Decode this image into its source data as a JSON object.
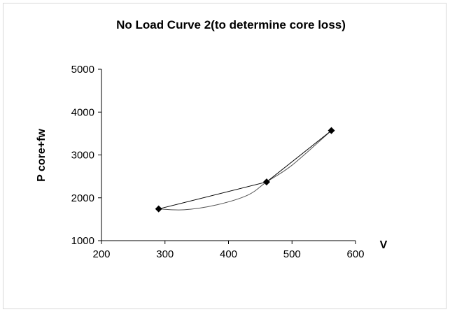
{
  "chart_data": {
    "type": "scatter",
    "title": "No Load Curve 2(to determine core loss)",
    "xlabel": "V",
    "ylabel": "P core+fw",
    "xlim": [
      200,
      600
    ],
    "ylim": [
      1000,
      5000
    ],
    "xticks": [
      200,
      300,
      400,
      500,
      600
    ],
    "yticks": [
      1000,
      2000,
      3000,
      4000,
      5000
    ],
    "grid": false,
    "legend": "none",
    "series": [
      {
        "style": "line-with-markers",
        "marker": "diamond",
        "color": "#000000",
        "x": [
          290,
          460,
          562
        ],
        "y": [
          1740,
          2370,
          3570
        ]
      },
      {
        "style": "smooth-trendline",
        "color": "#555555",
        "x": [
          290,
          330,
          380,
          430,
          460,
          500,
          562
        ],
        "y": [
          1740,
          1720,
          1830,
          2060,
          2370,
          2760,
          3570
        ]
      }
    ]
  }
}
